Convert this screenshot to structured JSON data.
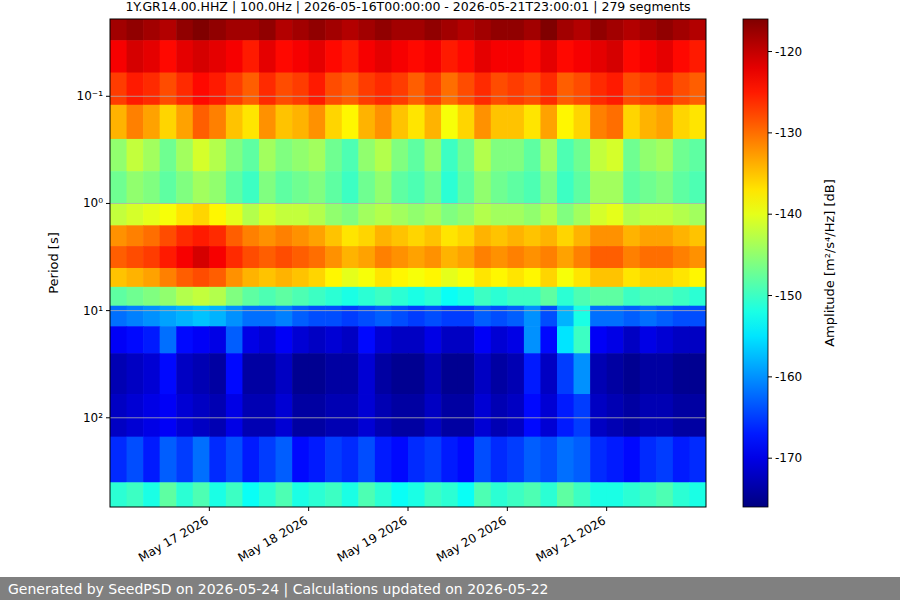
{
  "chart_data": {
    "type": "heatmap",
    "title": "1Y.GR14.00.HHZ | 100.0Hz | 2026-05-16T00:00:00 - 2026-05-21T23:00:01 | 279 segments",
    "y_label": "Period [s]",
    "footer": "Generated by SeedPSD on 2026-05-24 | Calculations updated on 2026-05-22",
    "log": "y",
    "grid": true,
    "xlim": [
      "2026-05-16T00:00",
      "2026-05-22T00:00"
    ],
    "xticks": [
      {
        "value": "2026-05-17T00:00",
        "label": "May 17 2026"
      },
      {
        "value": "2026-05-18T00:00",
        "label": "May 18 2026"
      },
      {
        "value": "2026-05-19T00:00",
        "label": "May 19 2026"
      },
      {
        "value": "2026-05-20T00:00",
        "label": "May 20 2026"
      },
      {
        "value": "2026-05-21T00:00",
        "label": "May 21 2026"
      }
    ],
    "ylim": [
      680,
      0.019
    ],
    "yticks": [
      {
        "value": 0.1,
        "label": "10⁻¹"
      },
      {
        "value": 1,
        "label": "10⁰"
      },
      {
        "value": 10,
        "label": "10¹"
      },
      {
        "value": 100,
        "label": "10²"
      }
    ],
    "colorbar": {
      "label": "Amplitude [m²/s⁴/Hz] [dB]",
      "range": [
        -176,
        -116
      ],
      "ticks": [
        -170,
        -160,
        -150,
        -140,
        -130,
        -120
      ]
    },
    "time_bins": [
      "2026-05-16T00:00",
      "2026-05-16T04:00",
      "2026-05-16T08:00",
      "2026-05-16T12:00",
      "2026-05-16T16:00",
      "2026-05-16T20:00",
      "2026-05-17T00:00",
      "2026-05-17T04:00",
      "2026-05-17T08:00",
      "2026-05-17T12:00",
      "2026-05-17T16:00",
      "2026-05-17T20:00",
      "2026-05-18T00:00",
      "2026-05-18T04:00",
      "2026-05-18T08:00",
      "2026-05-18T12:00",
      "2026-05-18T16:00",
      "2026-05-18T20:00",
      "2026-05-19T00:00",
      "2026-05-19T04:00",
      "2026-05-19T08:00",
      "2026-05-19T12:00",
      "2026-05-19T16:00",
      "2026-05-19T20:00",
      "2026-05-20T00:00",
      "2026-05-20T04:00",
      "2026-05-20T08:00",
      "2026-05-20T12:00",
      "2026-05-20T16:00",
      "2026-05-20T20:00",
      "2026-05-21T00:00",
      "2026-05-21T04:00",
      "2026-05-21T08:00",
      "2026-05-21T12:00",
      "2026-05-21T16:00",
      "2026-05-21T20:00",
      "2026-05-22T00:00"
    ],
    "period_bins": [
      0.019,
      0.03,
      0.06,
      0.12,
      0.25,
      0.5,
      1,
      1.6,
      2.5,
      4,
      6,
      9,
      14,
      25,
      60,
      150,
      400,
      680
    ],
    "cells": [
      [
        -118,
        -117,
        -118,
        -119,
        -117,
        -116,
        -117,
        -118,
        -118,
        -117,
        -119,
        -118,
        -117,
        -118,
        -119,
        -118,
        -117,
        -118,
        -118,
        -117,
        -118,
        -119,
        -118,
        -117,
        -117,
        -118,
        -116,
        -118,
        -119,
        -117,
        -118,
        -119,
        -118,
        -117,
        -118,
        -119
      ],
      [
        -123,
        -121,
        -122,
        -124,
        -122,
        -121,
        -122,
        -123,
        -125,
        -122,
        -124,
        -123,
        -122,
        -124,
        -125,
        -123,
        -122,
        -123,
        -124,
        -123,
        -125,
        -124,
        -122,
        -123,
        -123,
        -124,
        -122,
        -124,
        -123,
        -122,
        -121,
        -124,
        -123,
        -122,
        -124,
        -125
      ],
      [
        -127,
        -125,
        -126,
        -128,
        -126,
        -124,
        -125,
        -127,
        -129,
        -126,
        -128,
        -127,
        -125,
        -128,
        -129,
        -127,
        -126,
        -127,
        -129,
        -127,
        -130,
        -128,
        -126,
        -128,
        -127,
        -128,
        -126,
        -129,
        -128,
        -126,
        -125,
        -128,
        -127,
        -126,
        -128,
        -129
      ],
      [
        -134,
        -131,
        -133,
        -136,
        -133,
        -129,
        -131,
        -135,
        -137,
        -132,
        -135,
        -134,
        -132,
        -136,
        -138,
        -134,
        -132,
        -135,
        -137,
        -134,
        -139,
        -136,
        -132,
        -135,
        -135,
        -137,
        -133,
        -138,
        -136,
        -131,
        -130,
        -136,
        -134,
        -133,
        -136,
        -137
      ],
      [
        -145,
        -142,
        -144,
        -147,
        -144,
        -141,
        -143,
        -146,
        -148,
        -144,
        -146,
        -145,
        -144,
        -147,
        -149,
        -145,
        -143,
        -146,
        -148,
        -145,
        -150,
        -147,
        -143,
        -146,
        -146,
        -148,
        -144,
        -149,
        -147,
        -142,
        -141,
        -147,
        -145,
        -144,
        -147,
        -148
      ],
      [
        -147,
        -145,
        -146,
        -148,
        -146,
        -144,
        -145,
        -148,
        -150,
        -146,
        -148,
        -147,
        -146,
        -148,
        -150,
        -147,
        -145,
        -148,
        -149,
        -147,
        -151,
        -148,
        -145,
        -147,
        -148,
        -149,
        -146,
        -150,
        -148,
        -144,
        -144,
        -148,
        -147,
        -146,
        -148,
        -149
      ],
      [
        -142,
        -141,
        -140,
        -139,
        -137,
        -136,
        -138,
        -140,
        -143,
        -141,
        -142,
        -142,
        -143,
        -145,
        -146,
        -144,
        -143,
        -144,
        -145,
        -144,
        -146,
        -145,
        -143,
        -144,
        -144,
        -145,
        -143,
        -146,
        -144,
        -141,
        -140,
        -143,
        -142,
        -142,
        -143,
        -144
      ],
      [
        -132,
        -131,
        -130,
        -128,
        -126,
        -125,
        -126,
        -129,
        -131,
        -132,
        -131,
        -132,
        -133,
        -135,
        -137,
        -136,
        -134,
        -135,
        -136,
        -135,
        -137,
        -136,
        -134,
        -135,
        -134,
        -135,
        -134,
        -136,
        -134,
        -132,
        -132,
        -134,
        -133,
        -133,
        -134,
        -135
      ],
      [
        -129,
        -128,
        -127,
        -125,
        -123,
        -121,
        -123,
        -126,
        -128,
        -129,
        -128,
        -129,
        -130,
        -132,
        -134,
        -133,
        -131,
        -132,
        -133,
        -132,
        -134,
        -133,
        -131,
        -132,
        -131,
        -132,
        -131,
        -133,
        -131,
        -129,
        -129,
        -131,
        -130,
        -130,
        -131,
        -132
      ],
      [
        -135,
        -134,
        -133,
        -131,
        -129,
        -128,
        -129,
        -132,
        -134,
        -135,
        -134,
        -135,
        -136,
        -138,
        -140,
        -139,
        -137,
        -138,
        -139,
        -138,
        -140,
        -139,
        -137,
        -138,
        -137,
        -138,
        -136,
        -139,
        -137,
        -135,
        -135,
        -137,
        -136,
        -136,
        -137,
        -138
      ],
      [
        -148,
        -147,
        -146,
        -145,
        -143,
        -142,
        -143,
        -146,
        -148,
        -149,
        -148,
        -149,
        -150,
        -151,
        -152,
        -151,
        -150,
        -151,
        -152,
        -151,
        -153,
        -152,
        -150,
        -151,
        -150,
        -150,
        -148,
        -151,
        -149,
        -148,
        -148,
        -150,
        -149,
        -149,
        -150,
        -151
      ],
      [
        -162,
        -161,
        -160,
        -159,
        -158,
        -157,
        -158,
        -160,
        -162,
        -162,
        -161,
        -163,
        -164,
        -164,
        -165,
        -164,
        -163,
        -164,
        -165,
        -164,
        -165,
        -165,
        -163,
        -164,
        -163,
        -160,
        -164,
        -158,
        -152,
        -162,
        -162,
        -163,
        -162,
        -163,
        -164,
        -164
      ],
      [
        -169,
        -168,
        -167,
        -162,
        -168,
        -169,
        -170,
        -163,
        -170,
        -171,
        -169,
        -171,
        -172,
        -171,
        -172,
        -168,
        -171,
        -172,
        -172,
        -170,
        -172,
        -172,
        -169,
        -171,
        -170,
        -160,
        -168,
        -155,
        -150,
        -169,
        -170,
        -172,
        -170,
        -171,
        -172,
        -172
      ],
      [
        -173,
        -172,
        -171,
        -168,
        -172,
        -173,
        -174,
        -168,
        -174,
        -174,
        -172,
        -175,
        -175,
        -174,
        -174,
        -171,
        -174,
        -175,
        -175,
        -173,
        -175,
        -175,
        -172,
        -174,
        -173,
        -167,
        -172,
        -165,
        -160,
        -173,
        -174,
        -175,
        -174,
        -174,
        -175,
        -175
      ],
      [
        -172,
        -171,
        -170,
        -169,
        -171,
        -172,
        -173,
        -170,
        -173,
        -173,
        -171,
        -174,
        -174,
        -173,
        -173,
        -171,
        -173,
        -174,
        -174,
        -172,
        -174,
        -174,
        -171,
        -173,
        -172,
        -168,
        -171,
        -167,
        -165,
        -172,
        -173,
        -174,
        -173,
        -173,
        -174,
        -174
      ],
      [
        -166,
        -164,
        -167,
        -163,
        -165,
        -162,
        -166,
        -164,
        -167,
        -165,
        -163,
        -168,
        -167,
        -165,
        -166,
        -164,
        -167,
        -168,
        -166,
        -165,
        -167,
        -168,
        -164,
        -166,
        -165,
        -163,
        -164,
        -162,
        -163,
        -166,
        -167,
        -168,
        -166,
        -165,
        -167,
        -166
      ],
      [
        -151,
        -150,
        -152,
        -148,
        -151,
        -149,
        -152,
        -150,
        -153,
        -151,
        -149,
        -152,
        -151,
        -150,
        -152,
        -149,
        -151,
        -153,
        -152,
        -150,
        -151,
        -153,
        -149,
        -151,
        -150,
        -149,
        -151,
        -148,
        -150,
        -152,
        -152,
        -151,
        -150,
        -149,
        -151,
        -152
      ]
    ]
  }
}
